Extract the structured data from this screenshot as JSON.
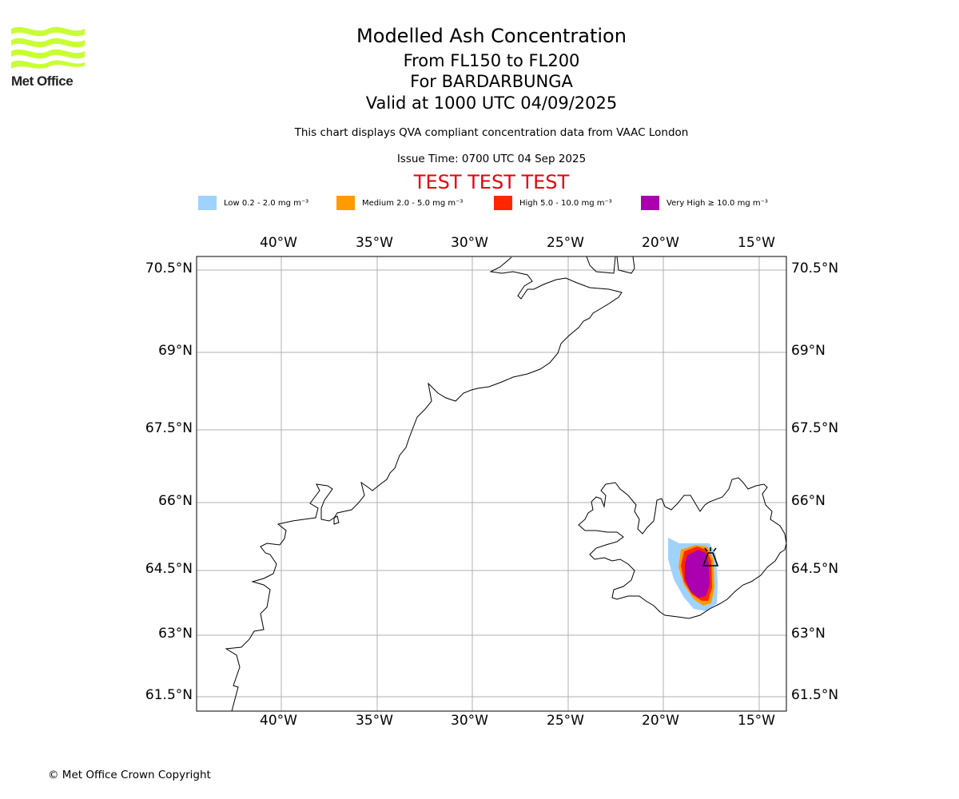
{
  "header": {
    "title": "Modelled Ash Concentration",
    "levels": "From FL150 to FL200",
    "volcano": "For BARDARBUNGA",
    "valid": "Valid at 1000 UTC 04/09/2025",
    "description": "This chart displays QVA compliant concentration data from VAAC London",
    "issue_time": "Issue Time: 0700 UTC 04 Sep 2025",
    "test_banner": "TEST TEST TEST"
  },
  "logo": {
    "text": "Met Office",
    "colors": [
      "#c8ff32"
    ]
  },
  "legend": [
    {
      "label": "Low 0.2 - 2.0 mg m⁻³",
      "color": "#a0d2ff"
    },
    {
      "label": "Medium 2.0 - 5.0 mg m⁻³",
      "color": "#ff9a00"
    },
    {
      "label": "High 5.0 - 10.0 mg m⁻³",
      "color": "#ff2600"
    },
    {
      "label": "Very High ≥ 10.0 mg m⁻³",
      "color": "#ab00b0"
    }
  ],
  "map": {
    "x_ticks": [
      "40°W",
      "35°W",
      "30°W",
      "25°W",
      "20°W",
      "15°W"
    ],
    "y_ticks": [
      "70.5°N",
      "69°N",
      "67.5°N",
      "66°N",
      "64.5°N",
      "63°N",
      "61.5°N"
    ],
    "volcano_icon": "volcano-icon"
  },
  "footer": {
    "copyright": "© Met Office Crown Copyright"
  }
}
